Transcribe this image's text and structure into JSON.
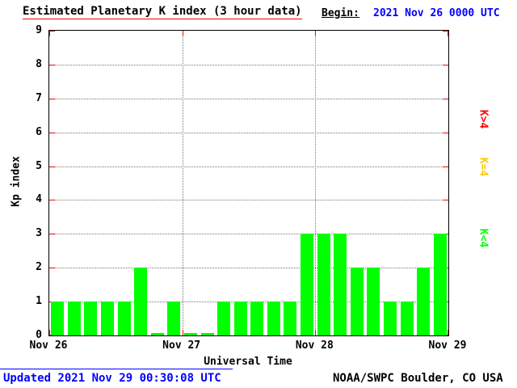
{
  "header": {
    "title": "Estimated Planetary K index (3 hour data)",
    "begin_label": "Begin:",
    "begin_value": "2021 Nov 26 0000 UTC"
  },
  "chart_data": {
    "type": "bar",
    "title": "Estimated Planetary K index (3 hour data)",
    "xlabel": "Universal Time",
    "ylabel": "Kp index",
    "ylim": [
      0,
      9
    ],
    "yticks": [
      0,
      1,
      2,
      3,
      4,
      5,
      6,
      7,
      8,
      9
    ],
    "xticks": [
      "Nov 26",
      "Nov 27",
      "Nov 28",
      "Nov 29"
    ],
    "begin": "2021 Nov 26 0000 UTC",
    "interval_hours": 3,
    "grid": true,
    "values": [
      1,
      1,
      1,
      1,
      1,
      2,
      0,
      1,
      0,
      0,
      1,
      1,
      1,
      1,
      1,
      3,
      3,
      3,
      2,
      2,
      1,
      1,
      2,
      3
    ]
  },
  "legend": {
    "items": [
      {
        "label": "K>4",
        "color": "#ff0000"
      },
      {
        "label": "K=4",
        "color": "#ffc800"
      },
      {
        "label": "K<4",
        "color": "#00ff00"
      }
    ]
  },
  "colors": {
    "bar": "#00ff00",
    "tick_marks": "#ff0000",
    "title_underline": "#ff0000",
    "blue_text": "#0000ff"
  },
  "footer": {
    "updated": "Updated 2021 Nov 29 00:30:08 UTC",
    "source": "NOAA/SWPC Boulder, CO USA"
  }
}
